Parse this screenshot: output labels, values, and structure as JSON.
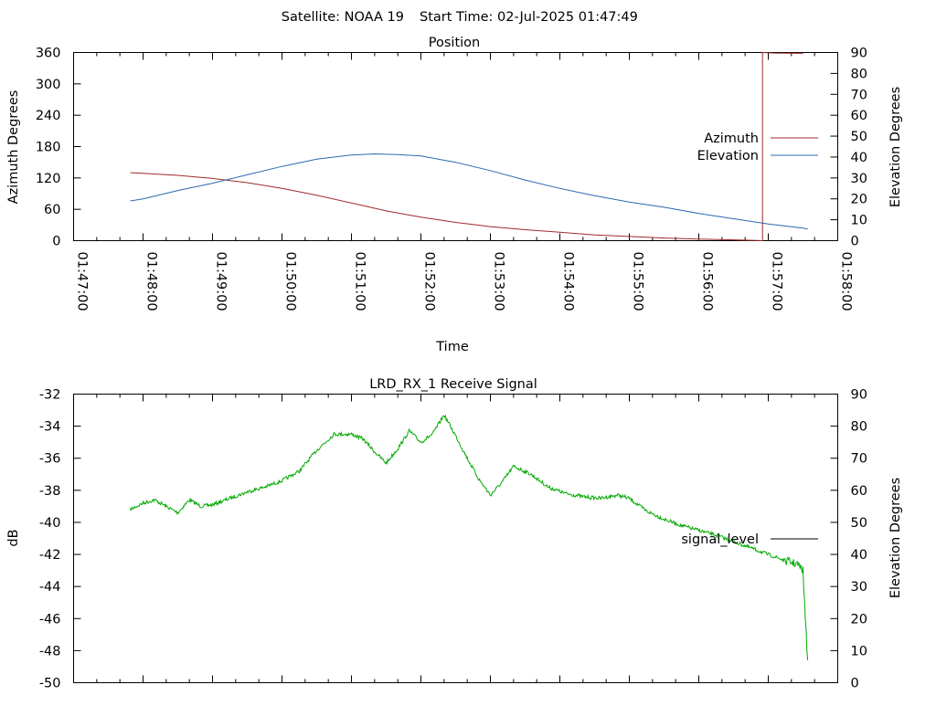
{
  "header": {
    "satellite_label": "Satellite: NOAA 19",
    "start_time_label": "Start Time: 02-Jul-2025 01:47:49"
  },
  "chart_data": [
    {
      "type": "line",
      "title": "Position",
      "xlabel": "Time",
      "ylabel": "Azimuth Degrees",
      "y2label": "Elevation Degrees",
      "x_ticks": [
        "01:47:00",
        "01:48:00",
        "01:49:00",
        "01:50:00",
        "01:51:00",
        "01:52:00",
        "01:53:00",
        "01:54:00",
        "01:55:00",
        "01:56:00",
        "01:57:00",
        "01:58:00"
      ],
      "xlim": [
        "01:47:00",
        "01:58:00"
      ],
      "ylim": [
        0,
        360
      ],
      "y_ticks": [
        0,
        60,
        120,
        180,
        240,
        300,
        360
      ],
      "y2lim": [
        0,
        90
      ],
      "y2_ticks": [
        0,
        10,
        20,
        30,
        40,
        50,
        60,
        70,
        80,
        90
      ],
      "grid": false,
      "legend_position": "right",
      "series": [
        {
          "name": "Azimuth",
          "axis": "left",
          "color": "#a02a2a",
          "points": [
            [
              "01:47:49",
              130
            ],
            [
              "01:48:00",
              129
            ],
            [
              "01:48:30",
              125
            ],
            [
              "01:49:00",
              119
            ],
            [
              "01:49:30",
              111
            ],
            [
              "01:50:00",
              100
            ],
            [
              "01:50:30",
              87
            ],
            [
              "01:51:00",
              72
            ],
            [
              "01:51:30",
              57
            ],
            [
              "01:52:00",
              45
            ],
            [
              "01:52:30",
              35
            ],
            [
              "01:53:00",
              27
            ],
            [
              "01:53:30",
              21
            ],
            [
              "01:54:00",
              16
            ],
            [
              "01:54:30",
              11
            ],
            [
              "01:55:00",
              8
            ],
            [
              "01:55:30",
              5
            ],
            [
              "01:56:00",
              3
            ],
            [
              "01:56:30",
              1.5
            ],
            [
              "01:56:50",
              0.5
            ],
            [
              "01:56:55",
              0
            ],
            [
              "01:56:55",
              360
            ],
            [
              "01:57:05",
              359
            ],
            [
              "01:57:30",
              358.5
            ]
          ]
        },
        {
          "name": "Elevation",
          "axis": "right",
          "color": "#2a6ab0",
          "points": [
            [
              "01:47:49",
              19
            ],
            [
              "01:48:00",
              20
            ],
            [
              "01:48:30",
              24
            ],
            [
              "01:49:00",
              27.5
            ],
            [
              "01:49:30",
              31.5
            ],
            [
              "01:50:00",
              35.5
            ],
            [
              "01:50:30",
              39
            ],
            [
              "01:51:00",
              41
            ],
            [
              "01:51:20",
              41.5
            ],
            [
              "01:51:40",
              41.2
            ],
            [
              "01:52:00",
              40.5
            ],
            [
              "01:52:30",
              37.5
            ],
            [
              "01:53:00",
              33.5
            ],
            [
              "01:53:30",
              29
            ],
            [
              "01:54:00",
              25
            ],
            [
              "01:54:30",
              21.5
            ],
            [
              "01:55:00",
              18.5
            ],
            [
              "01:55:30",
              16
            ],
            [
              "01:56:00",
              13
            ],
            [
              "01:56:30",
              10.5
            ],
            [
              "01:57:00",
              8
            ],
            [
              "01:57:30",
              6
            ],
            [
              "01:57:34",
              5.5
            ]
          ]
        }
      ]
    },
    {
      "type": "line",
      "title": "LRD_RX_1 Receive Signal",
      "ylabel": "dB",
      "y2label": "Elevation Degrees",
      "xlim": [
        "01:47:00",
        "01:58:00"
      ],
      "ylim": [
        -50,
        -32
      ],
      "y_ticks": [
        -50,
        -48,
        -46,
        -44,
        -42,
        -40,
        -38,
        -36,
        -34,
        -32
      ],
      "y2lim": [
        0,
        90
      ],
      "y2_ticks": [
        0,
        10,
        20,
        30,
        40,
        50,
        60,
        70,
        80,
        90
      ],
      "grid": false,
      "legend_position": "right",
      "series": [
        {
          "name": "signal_level",
          "axis": "left",
          "color": "#00aa00",
          "points": [
            [
              "01:47:49",
              -39.2
            ],
            [
              "01:48:00",
              -38.8
            ],
            [
              "01:48:10",
              -38.6
            ],
            [
              "01:48:20",
              -39.0
            ],
            [
              "01:48:30",
              -39.4
            ],
            [
              "01:48:40",
              -38.6
            ],
            [
              "01:48:50",
              -39.0
            ],
            [
              "01:49:00",
              -38.9
            ],
            [
              "01:49:15",
              -38.5
            ],
            [
              "01:49:30",
              -38.1
            ],
            [
              "01:49:45",
              -37.8
            ],
            [
              "01:50:00",
              -37.4
            ],
            [
              "01:50:15",
              -36.8
            ],
            [
              "01:50:30",
              -35.5
            ],
            [
              "01:50:45",
              -34.5
            ],
            [
              "01:51:00",
              -34.5
            ],
            [
              "01:51:10",
              -34.8
            ],
            [
              "01:51:20",
              -35.6
            ],
            [
              "01:51:30",
              -36.3
            ],
            [
              "01:51:40",
              -35.4
            ],
            [
              "01:51:50",
              -34.3
            ],
            [
              "01:52:00",
              -35.0
            ],
            [
              "01:52:10",
              -34.5
            ],
            [
              "01:52:20",
              -33.3
            ],
            [
              "01:52:30",
              -34.6
            ],
            [
              "01:52:40",
              -36.0
            ],
            [
              "01:52:50",
              -37.3
            ],
            [
              "01:53:00",
              -38.3
            ],
            [
              "01:53:10",
              -37.5
            ],
            [
              "01:53:20",
              -36.5
            ],
            [
              "01:53:35",
              -37.0
            ],
            [
              "01:53:50",
              -37.8
            ],
            [
              "01:54:05",
              -38.2
            ],
            [
              "01:54:20",
              -38.4
            ],
            [
              "01:54:35",
              -38.5
            ],
            [
              "01:54:50",
              -38.3
            ],
            [
              "01:55:00",
              -38.5
            ],
            [
              "01:55:15",
              -39.3
            ],
            [
              "01:55:30",
              -39.8
            ],
            [
              "01:55:45",
              -40.2
            ],
            [
              "01:56:00",
              -40.5
            ],
            [
              "01:56:15",
              -40.8
            ],
            [
              "01:56:30",
              -41.2
            ],
            [
              "01:56:45",
              -41.6
            ],
            [
              "01:57:00",
              -42.0
            ],
            [
              "01:57:15",
              -42.4
            ],
            [
              "01:57:25",
              -42.6
            ],
            [
              "01:57:30",
              -43.0
            ],
            [
              "01:57:32",
              -46.0
            ],
            [
              "01:57:34",
              -48.6
            ]
          ]
        }
      ]
    }
  ]
}
